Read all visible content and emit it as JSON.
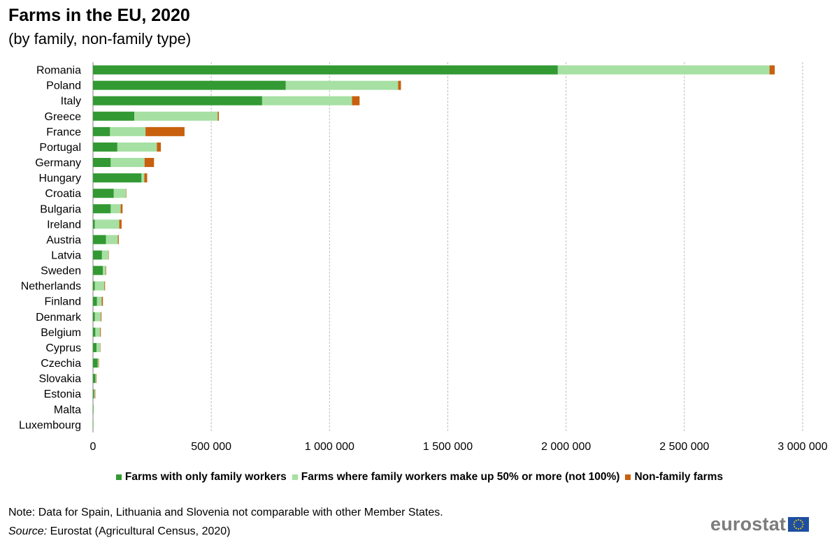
{
  "title": "Farms in the EU, 2020",
  "subtitle": "(by family, non-family type)",
  "note": "Note: Data for Spain, Lithuania and Slovenia not comparable with other Member States.",
  "source_label": "Source:",
  "source_text": " Eurostat (Agricultural Census, 2020)",
  "logo_text": "eurostat",
  "colors": {
    "family_only": "#339933",
    "family_majority": "#a6e0a3",
    "non_family": "#c8600e",
    "grid": "#bdbdbd"
  },
  "chart_data": {
    "type": "bar",
    "orientation": "horizontal",
    "stacked": true,
    "categories": [
      "Romania",
      "Poland",
      "Italy",
      "Greece",
      "France",
      "Portugal",
      "Germany",
      "Hungary",
      "Croatia",
      "Bulgaria",
      "Ireland",
      "Austria",
      "Latvia",
      "Sweden",
      "Netherlands",
      "Finland",
      "Denmark",
      "Belgium",
      "Cyprus",
      "Czechia",
      "Slovakia",
      "Estonia",
      "Malta",
      "Luxembourg"
    ],
    "series": [
      {
        "name": "Farms with only family workers",
        "color": "#339933",
        "values": [
          1965000,
          815000,
          715000,
          175000,
          72000,
          103000,
          75000,
          205000,
          88000,
          75000,
          8000,
          55000,
          38000,
          42000,
          8000,
          17000,
          8000,
          10000,
          15000,
          20000,
          10000,
          5000,
          2000,
          1000
        ]
      },
      {
        "name": "Farms where family workers make up 50% or more (not 100%)",
        "color": "#a6e0a3",
        "values": [
          895000,
          475000,
          380000,
          352000,
          150000,
          167000,
          143000,
          12000,
          52000,
          42000,
          103000,
          50000,
          27000,
          12000,
          40000,
          20000,
          25000,
          20000,
          15000,
          3000,
          3000,
          3000,
          1000,
          500
        ]
      },
      {
        "name": "Non-family farms",
        "color": "#c8600e",
        "values": [
          22000,
          12000,
          32000,
          5000,
          165000,
          17000,
          40000,
          12000,
          1000,
          8000,
          10000,
          4000,
          1000,
          2000,
          3000,
          5000,
          3000,
          3000,
          1000,
          2000,
          2000,
          2000,
          0,
          0
        ]
      }
    ],
    "xlim": [
      0,
      3000000
    ],
    "xticks": [
      0,
      500000,
      1000000,
      1500000,
      2000000,
      2500000,
      3000000
    ],
    "xtick_labels": [
      "0",
      "500 000",
      "1 000 000",
      "1 500 000",
      "2 000 000",
      "2 500 000",
      "3 000 000"
    ],
    "grid": "vertical dashed",
    "legend_position": "bottom"
  }
}
